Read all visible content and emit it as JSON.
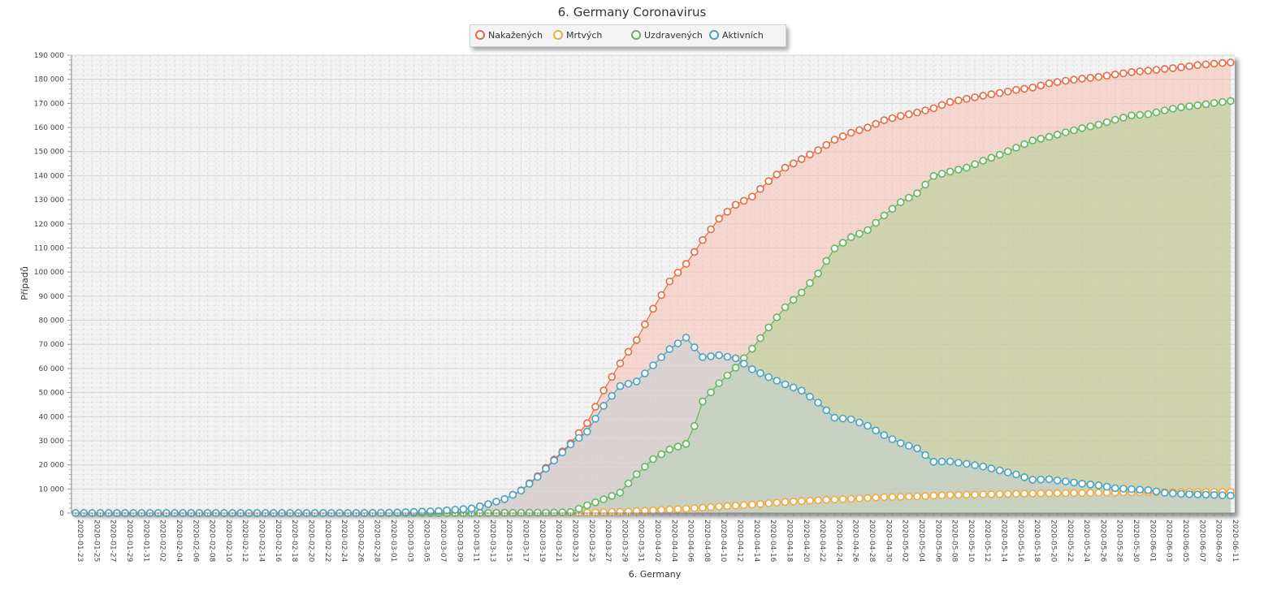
{
  "chart_data": {
    "type": "area",
    "title": "6. Germany Coronavirus",
    "xlabel": "6. Germany",
    "ylabel": "Případů",
    "ylim": [
      0,
      190000
    ],
    "yticks": [
      0,
      10000,
      20000,
      30000,
      40000,
      50000,
      60000,
      70000,
      80000,
      90000,
      100000,
      110000,
      120000,
      130000,
      140000,
      150000,
      160000,
      170000,
      180000,
      190000
    ],
    "ytick_labels": [
      "0",
      "10 000",
      "20 000",
      "30 000",
      "40 000",
      "50 000",
      "60 000",
      "70 000",
      "80 000",
      "90 000",
      "100 000",
      "110 000",
      "120 000",
      "130 000",
      "140 000",
      "150 000",
      "160 000",
      "170 000",
      "180 000",
      "190 000"
    ],
    "grid": true,
    "legend_position": "top-center",
    "x_start": "2020-01-23",
    "x_end": "2020-06-11",
    "x_tick_labels": [
      "2020-01-23",
      "2020-01-25",
      "2020-01-27",
      "2020-01-29",
      "2020-01-31",
      "2020-02-02",
      "2020-02-04",
      "2020-02-06",
      "2020-02-08",
      "2020-02-10",
      "2020-02-12",
      "2020-02-14",
      "2020-02-16",
      "2020-02-18",
      "2020-02-20",
      "2020-02-22",
      "2020-02-24",
      "2020-02-26",
      "2020-02-28",
      "2020-03-01",
      "2020-03-03",
      "2020-03-05",
      "2020-03-07",
      "2020-03-09",
      "2020-03-11",
      "2020-03-13",
      "2020-03-15",
      "2020-03-17",
      "2020-03-19",
      "2020-03-21",
      "2020-03-23",
      "2020-03-25",
      "2020-03-27",
      "2020-03-29",
      "2020-03-31",
      "2020-04-02",
      "2020-04-04",
      "2020-04-06",
      "2020-04-08",
      "2020-04-10",
      "2020-04-12",
      "2020-04-14",
      "2020-04-16",
      "2020-04-18",
      "2020-04-20",
      "2020-04-22",
      "2020-04-24",
      "2020-04-26",
      "2020-04-28",
      "2020-04-30",
      "2020-05-02",
      "2020-05-04",
      "2020-05-06",
      "2020-05-08",
      "2020-05-10",
      "2020-05-12",
      "2020-05-14",
      "2020-05-16",
      "2020-05-18",
      "2020-05-20",
      "2020-05-22",
      "2020-05-24",
      "2020-05-26",
      "2020-05-28",
      "2020-05-30",
      "2020-06-01",
      "2020-06-03",
      "2020-06-05",
      "2020-06-07",
      "2020-06-09",
      "2020-06-11"
    ],
    "series": [
      {
        "name": "Nakažených",
        "color": "#e8683f",
        "fill": "#f5c0b0",
        "key_points": [
          [
            "2020-01-23",
            0
          ],
          [
            "2020-02-26",
            0
          ],
          [
            "2020-03-01",
            100
          ],
          [
            "2020-03-07",
            800
          ],
          [
            "2020-03-11",
            1900
          ],
          [
            "2020-03-13",
            3700
          ],
          [
            "2020-03-15",
            5800
          ],
          [
            "2020-03-17",
            9400
          ],
          [
            "2020-03-19",
            15300
          ],
          [
            "2020-03-21",
            22200
          ],
          [
            "2020-03-23",
            29000
          ],
          [
            "2020-03-25",
            37300
          ],
          [
            "2020-03-27",
            50900
          ],
          [
            "2020-03-29",
            62100
          ],
          [
            "2020-03-31",
            71800
          ],
          [
            "2020-04-02",
            84800
          ],
          [
            "2020-04-04",
            96100
          ],
          [
            "2020-04-06",
            103400
          ],
          [
            "2020-04-08",
            113300
          ],
          [
            "2020-04-10",
            122200
          ],
          [
            "2020-04-12",
            127900
          ],
          [
            "2020-04-14",
            131300
          ],
          [
            "2020-04-16",
            137700
          ],
          [
            "2020-04-18",
            143300
          ],
          [
            "2020-04-20",
            146900
          ],
          [
            "2020-04-22",
            150600
          ],
          [
            "2020-04-24",
            154900
          ],
          [
            "2020-04-26",
            157800
          ],
          [
            "2020-04-28",
            160000
          ],
          [
            "2020-04-30",
            163000
          ],
          [
            "2020-05-02",
            164800
          ],
          [
            "2020-05-04",
            166200
          ],
          [
            "2020-05-06",
            168000
          ],
          [
            "2020-05-08",
            170600
          ],
          [
            "2020-05-10",
            171900
          ],
          [
            "2020-05-12",
            173200
          ],
          [
            "2020-05-14",
            174300
          ],
          [
            "2020-05-16",
            175600
          ],
          [
            "2020-05-18",
            176600
          ],
          [
            "2020-05-20",
            178300
          ],
          [
            "2020-05-22",
            179400
          ],
          [
            "2020-05-24",
            180300
          ],
          [
            "2020-05-26",
            181000
          ],
          [
            "2020-05-28",
            182000
          ],
          [
            "2020-05-30",
            183000
          ],
          [
            "2020-06-01",
            183600
          ],
          [
            "2020-06-03",
            184300
          ],
          [
            "2020-06-05",
            185000
          ],
          [
            "2020-06-07",
            185900
          ],
          [
            "2020-06-09",
            186500
          ],
          [
            "2020-06-11",
            187000
          ]
        ]
      },
      {
        "name": "Mrtvých",
        "color": "#f2a93b",
        "fill": "#f7dfb8",
        "key_points": [
          [
            "2020-01-23",
            0
          ],
          [
            "2020-03-09",
            0
          ],
          [
            "2020-03-21",
            80
          ],
          [
            "2020-03-25",
            200
          ],
          [
            "2020-03-29",
            500
          ],
          [
            "2020-04-02",
            1100
          ],
          [
            "2020-04-06",
            1800
          ],
          [
            "2020-04-10",
            2700
          ],
          [
            "2020-04-14",
            3500
          ],
          [
            "2020-04-18",
            4600
          ],
          [
            "2020-04-22",
            5300
          ],
          [
            "2020-04-26",
            5900
          ],
          [
            "2020-04-30",
            6600
          ],
          [
            "2020-05-04",
            6900
          ],
          [
            "2020-05-08",
            7500
          ],
          [
            "2020-05-12",
            7700
          ],
          [
            "2020-05-16",
            8000
          ],
          [
            "2020-05-20",
            8200
          ],
          [
            "2020-05-24",
            8300
          ],
          [
            "2020-05-28",
            8500
          ],
          [
            "2020-06-01",
            8600
          ],
          [
            "2020-06-05",
            8700
          ],
          [
            "2020-06-11",
            8800
          ]
        ]
      },
      {
        "name": "Uzdravených",
        "color": "#5cb85c",
        "fill": "#b0cf98",
        "key_points": [
          [
            "2020-01-23",
            0
          ],
          [
            "2020-03-09",
            0
          ],
          [
            "2020-03-21",
            200
          ],
          [
            "2020-03-23",
            400
          ],
          [
            "2020-03-25",
            3200
          ],
          [
            "2020-03-27",
            5700
          ],
          [
            "2020-03-29",
            8500
          ],
          [
            "2020-03-31",
            16100
          ],
          [
            "2020-04-02",
            22400
          ],
          [
            "2020-04-04",
            26400
          ],
          [
            "2020-04-06",
            28700
          ],
          [
            "2020-04-07",
            36100
          ],
          [
            "2020-04-08",
            46300
          ],
          [
            "2020-04-10",
            53900
          ],
          [
            "2020-04-12",
            60300
          ],
          [
            "2020-04-14",
            68200
          ],
          [
            "2020-04-16",
            77000
          ],
          [
            "2020-04-18",
            85400
          ],
          [
            "2020-04-20",
            91500
          ],
          [
            "2020-04-22",
            99400
          ],
          [
            "2020-04-24",
            109800
          ],
          [
            "2020-04-26",
            114500
          ],
          [
            "2020-04-28",
            117400
          ],
          [
            "2020-04-30",
            123500
          ],
          [
            "2020-05-02",
            129000
          ],
          [
            "2020-05-04",
            132700
          ],
          [
            "2020-05-06",
            139900
          ],
          [
            "2020-05-08",
            141700
          ],
          [
            "2020-05-10",
            143300
          ],
          [
            "2020-05-12",
            146200
          ],
          [
            "2020-05-14",
            148700
          ],
          [
            "2020-05-16",
            151600
          ],
          [
            "2020-05-18",
            154600
          ],
          [
            "2020-05-20",
            156100
          ],
          [
            "2020-05-22",
            158000
          ],
          [
            "2020-05-24",
            159700
          ],
          [
            "2020-05-26",
            161200
          ],
          [
            "2020-05-28",
            163200
          ],
          [
            "2020-05-30",
            165000
          ],
          [
            "2020-06-01",
            165500
          ],
          [
            "2020-06-03",
            167100
          ],
          [
            "2020-06-05",
            168400
          ],
          [
            "2020-06-07",
            169200
          ],
          [
            "2020-06-09",
            170200
          ],
          [
            "2020-06-11",
            171000
          ]
        ]
      },
      {
        "name": "Aktivních",
        "color": "#45a3c9",
        "fill": "#c3cfd4",
        "key_points": [
          [
            "2020-01-23",
            0
          ],
          [
            "2020-02-26",
            0
          ],
          [
            "2020-03-01",
            100
          ],
          [
            "2020-03-07",
            800
          ],
          [
            "2020-03-11",
            1900
          ],
          [
            "2020-03-13",
            3700
          ],
          [
            "2020-03-15",
            5800
          ],
          [
            "2020-03-17",
            9300
          ],
          [
            "2020-03-19",
            15000
          ],
          [
            "2020-03-21",
            21800
          ],
          [
            "2020-03-23",
            28500
          ],
          [
            "2020-03-25",
            33800
          ],
          [
            "2020-03-27",
            44500
          ],
          [
            "2020-03-29",
            52700
          ],
          [
            "2020-03-31",
            54600
          ],
          [
            "2020-04-02",
            61300
          ],
          [
            "2020-04-04",
            68000
          ],
          [
            "2020-04-06",
            72800
          ],
          [
            "2020-04-08",
            64700
          ],
          [
            "2020-04-10",
            65500
          ],
          [
            "2020-04-12",
            64200
          ],
          [
            "2020-04-14",
            59700
          ],
          [
            "2020-04-16",
            56400
          ],
          [
            "2020-04-18",
            53400
          ],
          [
            "2020-04-20",
            50800
          ],
          [
            "2020-04-22",
            45800
          ],
          [
            "2020-04-24",
            39500
          ],
          [
            "2020-04-26",
            38900
          ],
          [
            "2020-04-28",
            36200
          ],
          [
            "2020-04-30",
            32300
          ],
          [
            "2020-05-02",
            29000
          ],
          [
            "2020-05-04",
            26800
          ],
          [
            "2020-05-06",
            21300
          ],
          [
            "2020-05-08",
            21400
          ],
          [
            "2020-05-10",
            20400
          ],
          [
            "2020-05-12",
            19300
          ],
          [
            "2020-05-14",
            17700
          ],
          [
            "2020-05-16",
            16000
          ],
          [
            "2020-05-18",
            13800
          ],
          [
            "2020-05-20",
            14000
          ],
          [
            "2020-05-22",
            13100
          ],
          [
            "2020-05-24",
            12200
          ],
          [
            "2020-05-26",
            11500
          ],
          [
            "2020-05-28",
            10300
          ],
          [
            "2020-05-30",
            9900
          ],
          [
            "2020-06-01",
            9500
          ],
          [
            "2020-06-03",
            8400
          ],
          [
            "2020-06-05",
            7900
          ],
          [
            "2020-06-07",
            7700
          ],
          [
            "2020-06-09",
            7500
          ],
          [
            "2020-06-11",
            7200
          ]
        ]
      }
    ]
  }
}
